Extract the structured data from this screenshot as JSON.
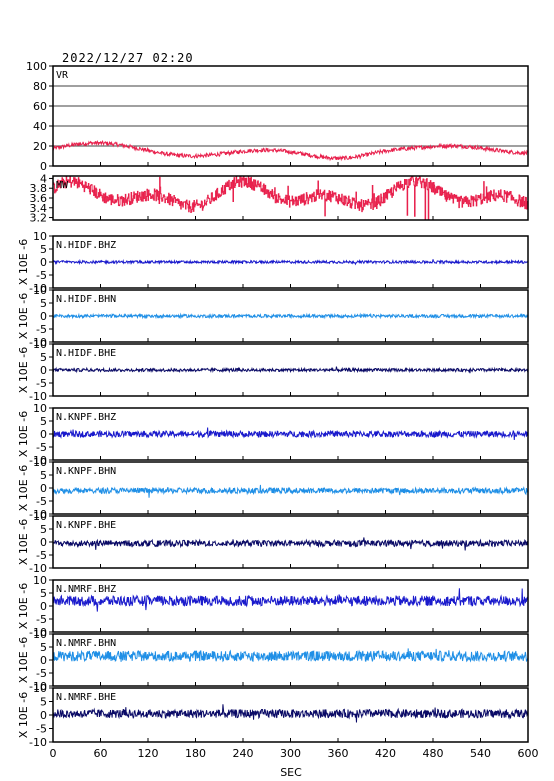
{
  "header": {
    "datetime": "2022/12/27 02:20"
  },
  "chart_data": {
    "type": "line",
    "xlabel": "SEC",
    "xlim": [
      0,
      600
    ],
    "xticks": [
      0,
      60,
      120,
      180,
      240,
      300,
      360,
      420,
      480,
      540,
      600
    ],
    "panels": [
      {
        "label": "VR",
        "ylim": [
          0,
          100
        ],
        "yticks": [
          0,
          20,
          40,
          60,
          80,
          100
        ],
        "grid": true,
        "color": "#e8204c",
        "kind": "vr",
        "base": 14,
        "amp": 5
      },
      {
        "label": "MW",
        "ylim": [
          3.15,
          4.05
        ],
        "yticks": [
          3.2,
          3.4,
          3.6,
          3.8,
          4.0
        ],
        "grid": false,
        "color": "#e8204c",
        "kind": "mw",
        "base": 3.65,
        "amp": 0.3
      },
      {
        "label": "N.HIDF.BHZ",
        "ylabel": "X 10E -6",
        "ylim": [
          -10,
          10
        ],
        "yticks": [
          -10,
          -5,
          0,
          5,
          10
        ],
        "color": "#1a1acc",
        "kind": "seis",
        "base": 0,
        "amp": 0.5
      },
      {
        "label": "N.HIDF.BHN",
        "ylabel": "X 10E -6",
        "ylim": [
          -10,
          10
        ],
        "yticks": [
          -10,
          -5,
          0,
          5,
          10
        ],
        "color": "#1f8fe6",
        "kind": "seis",
        "base": 0,
        "amp": 0.6
      },
      {
        "label": "N.HIDF.BHE",
        "ylabel": "X 10E -6",
        "ylim": [
          -10,
          10
        ],
        "yticks": [
          -10,
          -5,
          0,
          5,
          10
        ],
        "color": "#0a0a66",
        "kind": "seis",
        "base": 0,
        "amp": 0.6
      },
      {
        "label": "N.KNPF.BHZ",
        "ylabel": "X 10E -6",
        "ylim": [
          -10,
          10
        ],
        "yticks": [
          -10,
          -5,
          0,
          5,
          10
        ],
        "color": "#1a1acc",
        "kind": "seis",
        "base": 0,
        "amp": 1.2
      },
      {
        "label": "N.KNPF.BHN",
        "ylabel": "X 10E -6",
        "ylim": [
          -10,
          10
        ],
        "yticks": [
          -10,
          -5,
          0,
          5,
          10
        ],
        "color": "#1f8fe6",
        "kind": "seis",
        "base": -1,
        "amp": 1.1
      },
      {
        "label": "N.KNPF.BHE",
        "ylabel": "X 10E -6",
        "ylim": [
          -10,
          10
        ],
        "yticks": [
          -10,
          -5,
          0,
          5,
          10
        ],
        "color": "#0a0a66",
        "kind": "seis",
        "base": -0.5,
        "amp": 1.2
      },
      {
        "label": "N.NMRF.BHZ",
        "ylabel": "X 10E -6",
        "ylim": [
          -10,
          10
        ],
        "yticks": [
          -10,
          -5,
          0,
          5,
          10
        ],
        "color": "#1a1acc",
        "kind": "seis",
        "base": 2,
        "amp": 2.0
      },
      {
        "label": "N.NMRF.BHN",
        "ylabel": "X 10E -6",
        "ylim": [
          -10,
          10
        ],
        "yticks": [
          -10,
          -5,
          0,
          5,
          10
        ],
        "color": "#1f8fe6",
        "kind": "seis",
        "base": 1.5,
        "amp": 2.0
      },
      {
        "label": "N.NMRF.BHE",
        "ylabel": "X 10E -6",
        "ylim": [
          -10,
          10
        ],
        "yticks": [
          -10,
          -5,
          0,
          5,
          10
        ],
        "color": "#0a0a66",
        "kind": "seis",
        "base": 0.5,
        "amp": 1.6
      }
    ]
  }
}
